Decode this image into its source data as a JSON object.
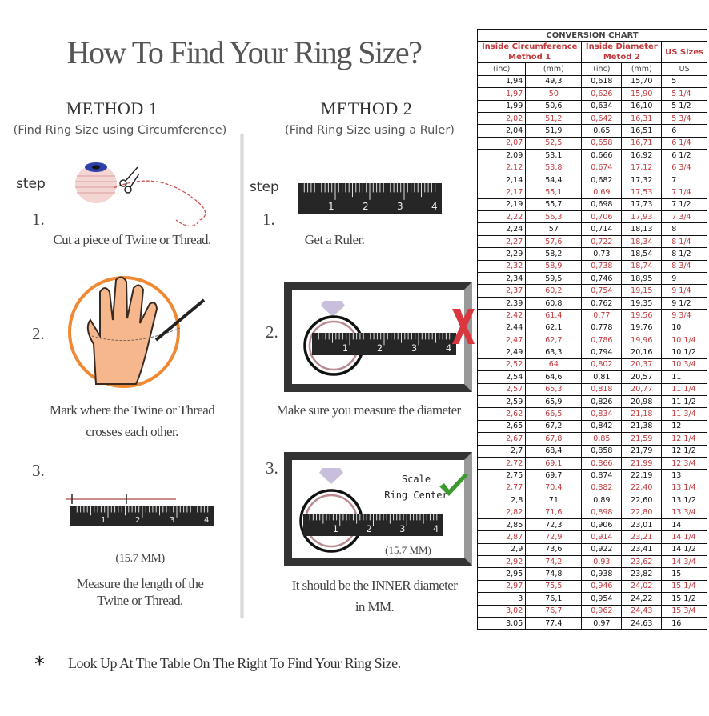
{
  "title": "How To Find Your Ring Size?",
  "method1": {
    "heading": "METHOD 1",
    "subtitle": "(Find Ring Size using Circumference)",
    "step_label": "step",
    "steps": [
      {
        "number": "1.",
        "lines": [
          "Cut a piece of  Twine or Thread."
        ]
      },
      {
        "number": "2.",
        "lines": [
          "Mark where the Twine or Thread",
          "crosses each other."
        ]
      },
      {
        "number": "3.",
        "measure": "(15.7 MM)",
        "lines": [
          "Measure the length of the",
          "Twine or Thread."
        ]
      }
    ]
  },
  "method2": {
    "heading": "METHOD 2",
    "subtitle": "(Find Ring Size using a Ruler)",
    "step_label": "step",
    "steps": [
      {
        "number": "1.",
        "lines": [
          "Get a Ruler."
        ]
      },
      {
        "number": "2.",
        "lines": [
          "Make sure you measure the diameter"
        ]
      },
      {
        "number": "3.",
        "scale_lines": [
          "Scale",
          "Ring Center"
        ],
        "measure": "(15.7 MM)",
        "lines": [
          "It should be the INNER diameter",
          "in MM."
        ]
      }
    ]
  },
  "ruler_labels": [
    "1",
    "2",
    "3",
    "4"
  ],
  "footnote": {
    "marker": "*",
    "text": "Look Up At The Table On The Right To Find Your Ring Size."
  },
  "colors": {
    "red": "#c1393c",
    "black": "#111111",
    "check": "#3c9a2e",
    "cross": "#d9363e",
    "diamond": "#c9bedb",
    "ring": "#b98a8f"
  },
  "icons": [
    "twine-spool-icon",
    "scissors-icon",
    "hand-icon",
    "pen-icon",
    "diamond-ring-icon",
    "cross-mark-icon",
    "check-mark-icon",
    "ruler-icon"
  ],
  "chart": {
    "title": "CONVERSION CHART",
    "group_headers": [
      {
        "line1": "Inside Circumference",
        "line2": "Method 1"
      },
      {
        "line1": "Inside Diameter",
        "line2": "Metod 2"
      },
      {
        "line1": "US Sizes"
      }
    ],
    "units": [
      "(inc)",
      "(mm)",
      "(inc)",
      "(mm)",
      "US"
    ],
    "rows": [
      [
        "1,94",
        "49,3",
        "0,618",
        "15,70",
        "5"
      ],
      [
        "1,97",
        "50",
        "0,626",
        "15,90",
        "5 1/4"
      ],
      [
        "1,99",
        "50,6",
        "0,634",
        "16,10",
        "5 1/2"
      ],
      [
        "2,02",
        "51,2",
        "0,642",
        "16,31",
        "5 3/4"
      ],
      [
        "2,04",
        "51,9",
        "0,65",
        "16,51",
        "6"
      ],
      [
        "2,07",
        "52,5",
        "0,658",
        "16,71",
        "6 1/4"
      ],
      [
        "2,09",
        "53,1",
        "0,666",
        "16,92",
        "6 1/2"
      ],
      [
        "2,12",
        "53,8",
        "0,674",
        "17,12",
        "6 3/4"
      ],
      [
        "2,14",
        "54,4",
        "0,682",
        "17,32",
        "7"
      ],
      [
        "2,17",
        "55,1",
        "0,69",
        "17,53",
        "7 1/4"
      ],
      [
        "2,19",
        "55,7",
        "0,698",
        "17,73",
        "7 1/2"
      ],
      [
        "2,22",
        "56,3",
        "0,706",
        "17,93",
        "7 3/4"
      ],
      [
        "2,24",
        "57",
        "0,714",
        "18,13",
        "8"
      ],
      [
        "2,27",
        "57,6",
        "0,722",
        "18,34",
        "8 1/4"
      ],
      [
        "2,29",
        "58,2",
        "0,73",
        "18,54",
        "8 1/2"
      ],
      [
        "2,32",
        "58,9",
        "0,738",
        "18,74",
        "8 3/4"
      ],
      [
        "2,34",
        "59,5",
        "0,746",
        "18,95",
        "9"
      ],
      [
        "2,37",
        "60,2",
        "0,754",
        "19,15",
        "9 1/4"
      ],
      [
        "2,39",
        "60,8",
        "0,762",
        "19,35",
        "9 1/2"
      ],
      [
        "2,42",
        "61,4",
        "0,77",
        "19,56",
        "9 3/4"
      ],
      [
        "2,44",
        "62,1",
        "0,778",
        "19,76",
        "10"
      ],
      [
        "2,47",
        "62,7",
        "0,786",
        "19,96",
        "10 1/4"
      ],
      [
        "2,49",
        "63,3",
        "0,794",
        "20,16",
        "10 1/2"
      ],
      [
        "2,52",
        "64",
        "0,802",
        "20,37",
        "10 3/4"
      ],
      [
        "2,54",
        "64,6",
        "0,81",
        "20,57",
        "11"
      ],
      [
        "2,57",
        "65,3",
        "0,818",
        "20,77",
        "11 1/4"
      ],
      [
        "2,59",
        "65,9",
        "0,826",
        "20,98",
        "11 1/2"
      ],
      [
        "2,62",
        "66,5",
        "0,834",
        "21,18",
        "11 3/4"
      ],
      [
        "2,65",
        "67,2",
        "0,842",
        "21,38",
        "12"
      ],
      [
        "2,67",
        "67,8",
        "0,85",
        "21,59",
        "12 1/4"
      ],
      [
        "2,7",
        "68,4",
        "0,858",
        "21,79",
        "12 1/2"
      ],
      [
        "2,72",
        "69,1",
        "0,866",
        "21,99",
        "12 3/4"
      ],
      [
        "2,75",
        "69,7",
        "0,874",
        "22,19",
        "13"
      ],
      [
        "2,77",
        "70,4",
        "0,882",
        "22,40",
        "13 1/4"
      ],
      [
        "2,8",
        "71",
        "0,89",
        "22,60",
        "13 1/2"
      ],
      [
        "2,82",
        "71,6",
        "0,898",
        "22,80",
        "13 3/4"
      ],
      [
        "2,85",
        "72,3",
        "0,906",
        "23,01",
        "14"
      ],
      [
        "2,87",
        "72,9",
        "0,914",
        "23,21",
        "14 1/4"
      ],
      [
        "2,9",
        "73,6",
        "0,922",
        "23,41",
        "14 1/2"
      ],
      [
        "2,92",
        "74,2",
        "0,93",
        "23,62",
        "14 3/4"
      ],
      [
        "2,95",
        "74,8",
        "0,938",
        "23,82",
        "15"
      ],
      [
        "2,97",
        "75,5",
        "0,946",
        "24,02",
        "15 1/4"
      ],
      [
        "3",
        "76,1",
        "0,954",
        "24,22",
        "15 1/2"
      ],
      [
        "3,02",
        "76,7",
        "0,962",
        "24,43",
        "15 3/4"
      ],
      [
        "3,05",
        "77,4",
        "0,97",
        "24,63",
        "16"
      ]
    ]
  }
}
